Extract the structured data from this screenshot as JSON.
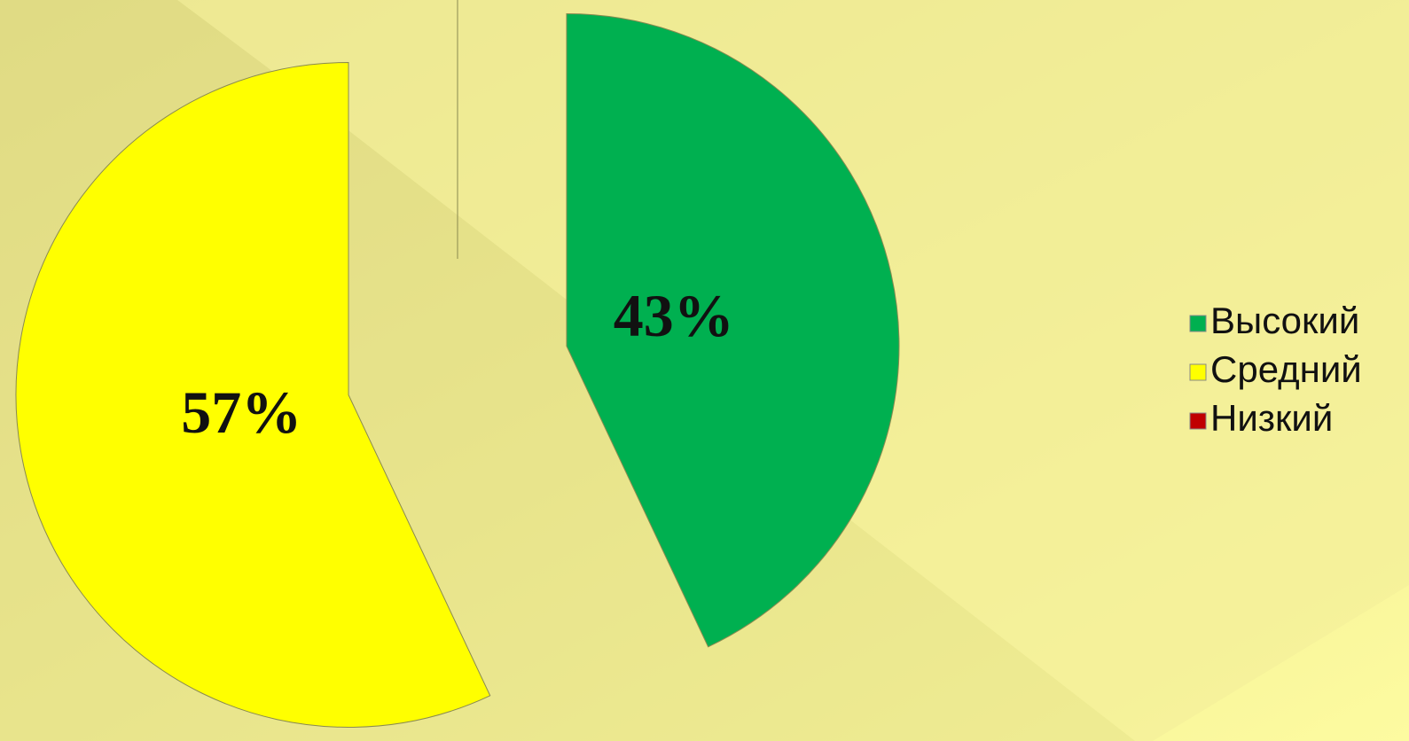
{
  "chart_data": {
    "type": "pie",
    "categories": [
      "Высокий",
      "Средний",
      "Низкий"
    ],
    "values": [
      43,
      57,
      0
    ],
    "value_labels": [
      "43%",
      "57%",
      null
    ],
    "colors": [
      "#00b050",
      "#ffff00",
      "#c00000"
    ],
    "exploded": true
  }
}
